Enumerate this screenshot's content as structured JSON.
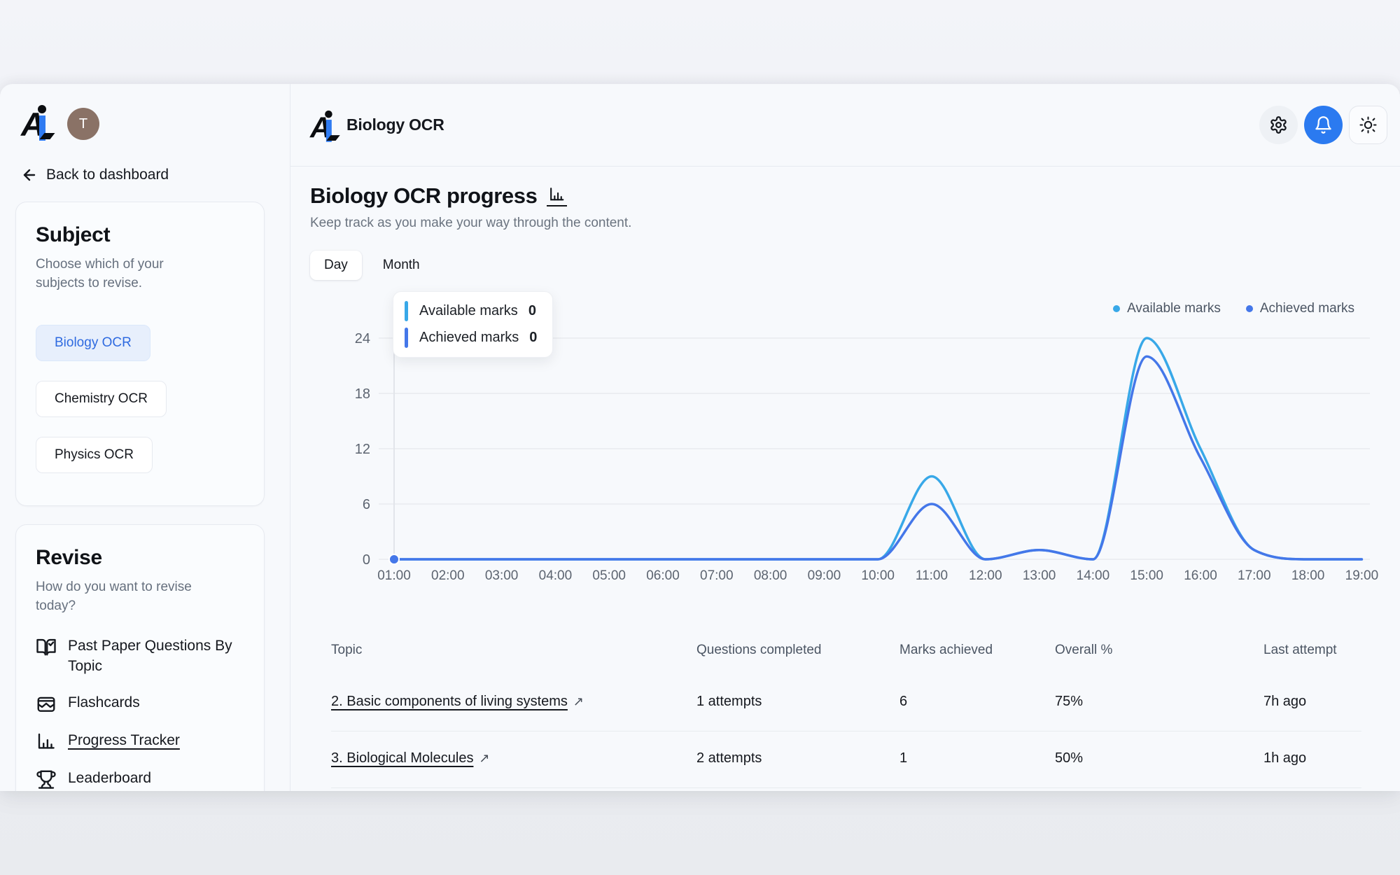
{
  "sidebar": {
    "avatar_initial": "T",
    "back_link": "Back to dashboard",
    "subject_card": {
      "title": "Subject",
      "subtitle": "Choose which of your subjects to revise.",
      "options": [
        {
          "label": "Biology OCR",
          "selected": true
        },
        {
          "label": "Chemistry OCR",
          "selected": false
        },
        {
          "label": "Physics OCR",
          "selected": false
        }
      ]
    },
    "revise_card": {
      "title": "Revise",
      "subtitle": "How do you want to revise today?",
      "items": [
        {
          "label": "Past Paper Questions By Topic",
          "icon": "book-check-icon",
          "active": false
        },
        {
          "label": "Flashcards",
          "icon": "flashcards-icon",
          "active": false
        },
        {
          "label": "Progress Tracker",
          "icon": "bar-chart-icon",
          "active": true
        },
        {
          "label": "Leaderboard",
          "icon": "trophy-icon",
          "active": false
        }
      ]
    }
  },
  "header": {
    "app_title": "Biology OCR"
  },
  "main": {
    "title": "Biology OCR progress",
    "subtitle": "Keep track as you make your way through the content.",
    "tabs": [
      {
        "label": "Day",
        "active": true
      },
      {
        "label": "Month",
        "active": false
      }
    ],
    "tooltip": {
      "rows": [
        {
          "label": "Available marks",
          "value": "0",
          "color": "#38a8e8"
        },
        {
          "label": "Achieved marks",
          "value": "0",
          "color": "#4477e9"
        }
      ]
    }
  },
  "chart_data": {
    "type": "line",
    "title": "Biology OCR progress",
    "x": [
      "01:00",
      "02:00",
      "03:00",
      "04:00",
      "05:00",
      "06:00",
      "07:00",
      "08:00",
      "09:00",
      "10:00",
      "11:00",
      "12:00",
      "13:00",
      "14:00",
      "15:00",
      "16:00",
      "17:00",
      "18:00",
      "19:00"
    ],
    "series": [
      {
        "name": "Available marks",
        "color": "#38a8e8",
        "values": [
          0,
          0,
          0,
          0,
          0,
          0,
          0,
          0,
          0,
          0,
          9,
          0,
          1,
          0,
          24,
          12,
          1,
          0,
          0
        ]
      },
      {
        "name": "Achieved marks",
        "color": "#4477e9",
        "values": [
          0,
          0,
          0,
          0,
          0,
          0,
          0,
          0,
          0,
          0,
          6,
          0,
          1,
          0,
          22,
          11,
          1,
          0,
          0
        ]
      }
    ],
    "y_ticks": [
      0,
      6,
      12,
      18,
      24
    ],
    "ylim": [
      0,
      24
    ],
    "grid": "horizontal",
    "legend_position": "top-right",
    "hover_point": {
      "x_label": "01:00",
      "available": 0,
      "achieved": 0
    }
  },
  "table": {
    "columns": [
      "Topic",
      "Questions completed",
      "Marks achieved",
      "Overall %",
      "Last attempt"
    ],
    "rows": [
      {
        "topic": "2. Basic components of living systems",
        "questions_completed": "1 attempts",
        "marks_achieved": "6",
        "overall_pct": "75%",
        "last_attempt": "7h ago"
      },
      {
        "topic": "3. Biological Molecules",
        "questions_completed": "2 attempts",
        "marks_achieved": "1",
        "overall_pct": "50%",
        "last_attempt": "1h ago"
      }
    ]
  }
}
